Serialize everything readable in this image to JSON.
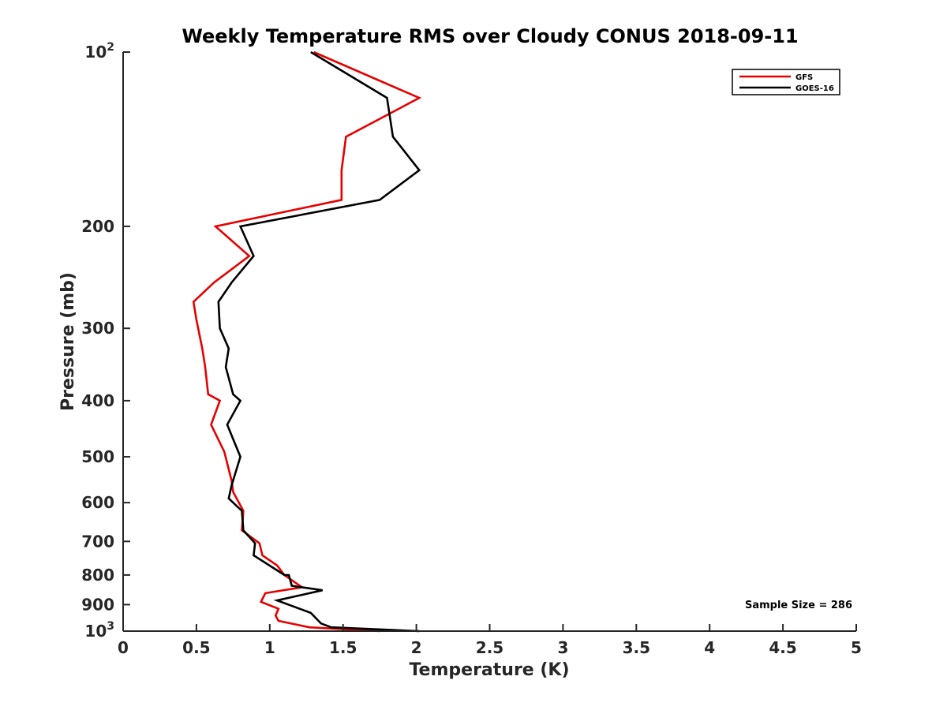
{
  "chart_data": {
    "type": "line",
    "title": "Weekly Temperature RMS over Cloudy CONUS 2018-09-11",
    "xlabel": "Temperature (K)",
    "ylabel": "Pressure (mb)",
    "xlim": [
      0,
      5
    ],
    "ylim": [
      100,
      1000
    ],
    "y_scale": "log",
    "y_reversed": true,
    "x_ticks": [
      0,
      0.5,
      1,
      1.5,
      2,
      2.5,
      3,
      3.5,
      4,
      4.5,
      5
    ],
    "x_tick_labels": [
      "0",
      "0.5",
      "1",
      "1.5",
      "2",
      "2.5",
      "3",
      "3.5",
      "4",
      "4.5",
      "5"
    ],
    "y_ticks": [
      200,
      300,
      400,
      500,
      600,
      700,
      800,
      900
    ],
    "y_tick_labels": [
      "200",
      "300",
      "400",
      "500",
      "600",
      "700",
      "800",
      "900"
    ],
    "y_tick_top": {
      "base": "10",
      "exp": "2",
      "value": 100
    },
    "y_tick_bottom": {
      "base": "10",
      "exp": "3",
      "value": 1000
    },
    "legend_position": "top-right",
    "annotation": "Sample Size = 286",
    "series": [
      {
        "name": "GFS",
        "color": "#e60000",
        "points": [
          {
            "x": 1.3,
            "p": 100
          },
          {
            "x": 2.02,
            "p": 120
          },
          {
            "x": 1.52,
            "p": 140
          },
          {
            "x": 1.49,
            "p": 160
          },
          {
            "x": 1.49,
            "p": 180
          },
          {
            "x": 0.63,
            "p": 200
          },
          {
            "x": 0.86,
            "p": 225
          },
          {
            "x": 0.62,
            "p": 250
          },
          {
            "x": 0.48,
            "p": 270
          },
          {
            "x": 0.5,
            "p": 290
          },
          {
            "x": 0.54,
            "p": 325
          },
          {
            "x": 0.56,
            "p": 350
          },
          {
            "x": 0.58,
            "p": 390
          },
          {
            "x": 0.66,
            "p": 400
          },
          {
            "x": 0.6,
            "p": 440
          },
          {
            "x": 0.69,
            "p": 490
          },
          {
            "x": 0.74,
            "p": 550
          },
          {
            "x": 0.75,
            "p": 575
          },
          {
            "x": 0.82,
            "p": 620
          },
          {
            "x": 0.81,
            "p": 670
          },
          {
            "x": 0.93,
            "p": 705
          },
          {
            "x": 0.95,
            "p": 740
          },
          {
            "x": 1.05,
            "p": 770
          },
          {
            "x": 1.1,
            "p": 800
          },
          {
            "x": 1.22,
            "p": 840
          },
          {
            "x": 0.97,
            "p": 860
          },
          {
            "x": 0.94,
            "p": 890
          },
          {
            "x": 1.06,
            "p": 915
          },
          {
            "x": 1.04,
            "p": 940
          },
          {
            "x": 1.06,
            "p": 960
          },
          {
            "x": 1.27,
            "p": 985
          },
          {
            "x": 1.75,
            "p": 1000
          }
        ]
      },
      {
        "name": "GOES-16",
        "color": "#000000",
        "points": [
          {
            "x": 1.28,
            "p": 100
          },
          {
            "x": 1.8,
            "p": 120
          },
          {
            "x": 1.84,
            "p": 140
          },
          {
            "x": 2.02,
            "p": 160
          },
          {
            "x": 1.75,
            "p": 180
          },
          {
            "x": 0.8,
            "p": 200
          },
          {
            "x": 0.89,
            "p": 225
          },
          {
            "x": 0.74,
            "p": 250
          },
          {
            "x": 0.65,
            "p": 270
          },
          {
            "x": 0.66,
            "p": 300
          },
          {
            "x": 0.72,
            "p": 325
          },
          {
            "x": 0.7,
            "p": 350
          },
          {
            "x": 0.75,
            "p": 390
          },
          {
            "x": 0.8,
            "p": 400
          },
          {
            "x": 0.71,
            "p": 440
          },
          {
            "x": 0.8,
            "p": 500
          },
          {
            "x": 0.74,
            "p": 560
          },
          {
            "x": 0.72,
            "p": 590
          },
          {
            "x": 0.81,
            "p": 620
          },
          {
            "x": 0.82,
            "p": 670
          },
          {
            "x": 0.9,
            "p": 705
          },
          {
            "x": 0.89,
            "p": 740
          },
          {
            "x": 1.1,
            "p": 800
          },
          {
            "x": 1.13,
            "p": 800
          },
          {
            "x": 1.15,
            "p": 835
          },
          {
            "x": 1.36,
            "p": 850
          },
          {
            "x": 1.05,
            "p": 885
          },
          {
            "x": 1.28,
            "p": 930
          },
          {
            "x": 1.35,
            "p": 970
          },
          {
            "x": 1.42,
            "p": 985
          },
          {
            "x": 2.02,
            "p": 1000
          }
        ]
      }
    ]
  }
}
